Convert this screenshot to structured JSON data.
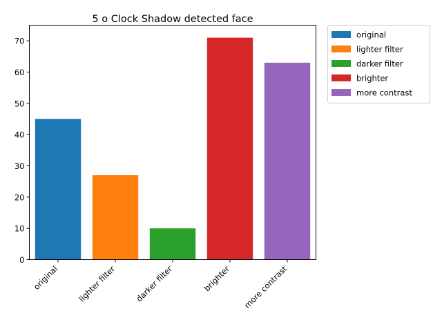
{
  "chart_data": {
    "type": "bar",
    "title": "5 o Clock Shadow detected face",
    "xlabel": "",
    "ylabel": "",
    "categories": [
      "original",
      "lighter filter",
      "darker filter",
      "brighter",
      "more contrast"
    ],
    "values": [
      45,
      27,
      10,
      71,
      63
    ],
    "colors": [
      "#1f77b4",
      "#ff7f0e",
      "#2ca02c",
      "#d62728",
      "#9467bd"
    ],
    "ylim": [
      0,
      75
    ],
    "yticks": [
      0,
      10,
      20,
      30,
      40,
      50,
      60,
      70
    ],
    "grid": false,
    "legend": {
      "position": "outside-top-right",
      "entries": [
        "original",
        "lighter filter",
        "darker filter",
        "brighter",
        "more contrast"
      ]
    }
  }
}
